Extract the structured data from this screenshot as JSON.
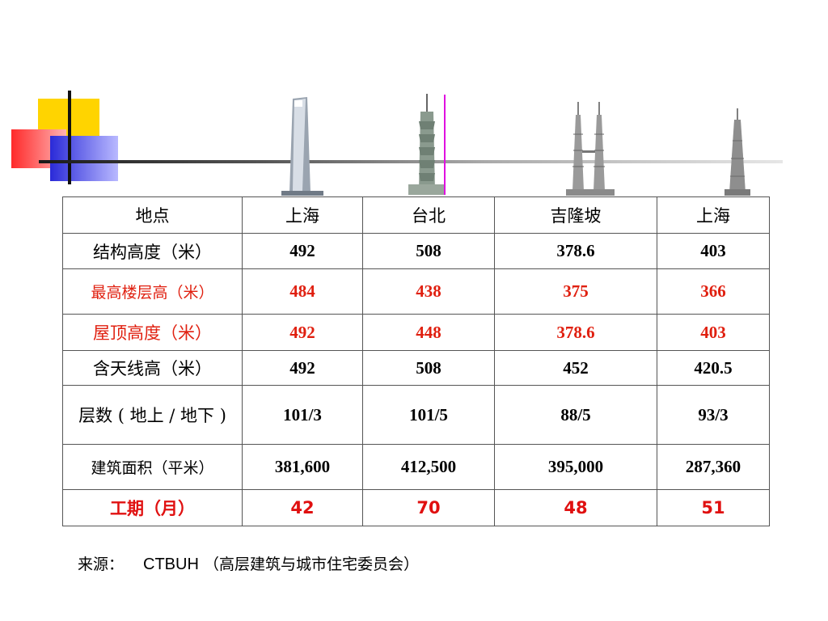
{
  "table": {
    "header": [
      "地点",
      "上海",
      "台北",
      "吉隆坡",
      "上海"
    ],
    "rows": [
      {
        "label": "结构高度（米）",
        "values": [
          "492",
          "508",
          "378.6",
          "403"
        ]
      },
      {
        "label": "最高楼层高（米）",
        "values": [
          "484",
          "438",
          "375",
          "366"
        ]
      },
      {
        "label": "屋顶高度（米）",
        "values": [
          "492",
          "448",
          "378.6",
          "403"
        ]
      },
      {
        "label": "含天线高（米）",
        "values": [
          "492",
          "508",
          "452",
          "420.5"
        ]
      },
      {
        "label": "层数 ( 地上 / 地下 )",
        "values": [
          "101/3",
          "101/5",
          "88/5",
          "93/3"
        ]
      },
      {
        "label": "建筑面积（平米）",
        "values": [
          "381,600",
          "412,500",
          "395,000",
          "287,360"
        ]
      },
      {
        "label": "工期（月）",
        "values": [
          "42",
          "70",
          "48",
          "51"
        ]
      }
    ]
  },
  "source": {
    "prefix": "来源：",
    "org": "CTBUH",
    "org_desc": "（高层建筑与城市住宅委员会）"
  },
  "colors": {
    "accent_red": "#e02010",
    "yellow": "#ffd400",
    "blue": "#2a2ad8",
    "magenta": "#e010e0"
  }
}
